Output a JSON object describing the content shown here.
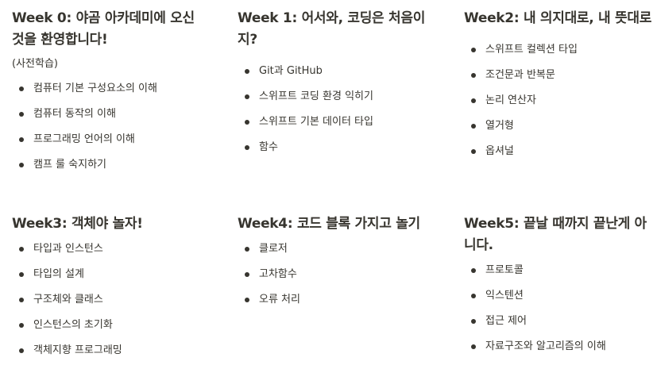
{
  "weeks": [
    {
      "title": "Week 0: 야곰 아카데미에 오신 것을 환영합니다!",
      "subtitle": "(사전학습)",
      "items": [
        "컴퓨터 기본 구성요소의 이해",
        "컴퓨터 동작의 이해",
        "프로그래밍 언어의 이해",
        "캠프 룰 숙지하기"
      ]
    },
    {
      "title": "Week 1: 어서와, 코딩은 처음이지?",
      "items": [
        "Git과 GitHub",
        "스위프트 코딩 환경 익히기",
        "스위프트 기본 데이터 타입",
        "함수"
      ]
    },
    {
      "title": "Week2: 내 의지대로, 내 뜻대로",
      "items": [
        "스위프트 컬렉션 타입",
        "조건문과 반복문",
        "논리 연산자",
        "열거형",
        "옵셔널"
      ]
    },
    {
      "title": "Week3: 객체야 놀자!",
      "items": [
        "타입과 인스턴스",
        "타입의 설계",
        "구조체와 클래스",
        "인스턴스의 초기화",
        "객체지향 프로그래밍"
      ]
    },
    {
      "title": "Week4: 코드 블록 가지고 놀기",
      "items": [
        "클로저",
        "고차함수",
        "오류 처리"
      ]
    },
    {
      "title": "Week5: 끝날 때까지 끝난게 아니다.",
      "items": [
        "프로토콜",
        "익스텐션",
        "접근 제어",
        "자료구조와 알고리즘의 이해"
      ]
    }
  ]
}
